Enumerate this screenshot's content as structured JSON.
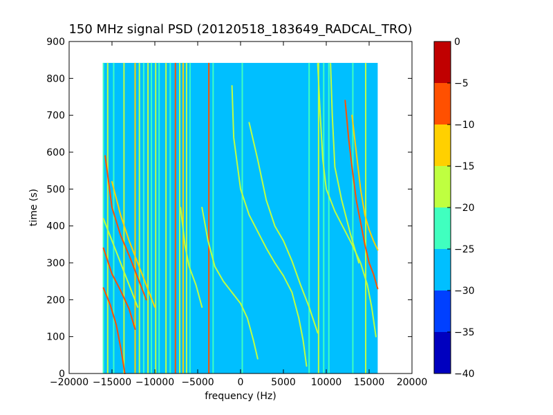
{
  "chart_data": {
    "type": "heatmap",
    "subtype": "filled-contour spectrogram",
    "title": "150 MHz signal PSD (20120518_183649_RADCAL_TRO)",
    "xlabel": "frequency (Hz)",
    "ylabel": "time (s)",
    "xlim": [
      -20000,
      20000
    ],
    "ylim": [
      0,
      900
    ],
    "x_ticks": [
      -20000,
      -15000,
      -10000,
      -5000,
      0,
      5000,
      10000,
      15000,
      20000
    ],
    "x_tick_labels": [
      "−20000",
      "−15000",
      "−10000",
      "−5000",
      "0",
      "5000",
      "10000",
      "15000",
      "20000"
    ],
    "y_ticks": [
      0,
      100,
      200,
      300,
      400,
      500,
      600,
      700,
      800,
      900
    ],
    "y_tick_labels": [
      "0",
      "100",
      "200",
      "300",
      "400",
      "500",
      "600",
      "700",
      "800",
      "900"
    ],
    "data_extent": {
      "x": [
        -16000,
        16000
      ],
      "y": [
        0,
        842
      ]
    },
    "background_level": -27.5,
    "colorbar": {
      "levels": [
        -40,
        -35,
        -30,
        -25,
        -20,
        -15,
        -10,
        -5,
        0
      ],
      "tick_labels": [
        "−40",
        "−35",
        "−30",
        "−25",
        "−20",
        "−15",
        "−10",
        "−5",
        "0"
      ],
      "colors": [
        "#0000bf",
        "#0040ff",
        "#00bfff",
        "#40ffbf",
        "#bfff40",
        "#ffd000",
        "#ff5000",
        "#c00000"
      ]
    },
    "vertical_lines": [
      {
        "x": -16000,
        "level": -22.5
      },
      {
        "x": -15500,
        "level": -17.5
      },
      {
        "x": -14800,
        "level": -22.5
      },
      {
        "x": -13600,
        "level": -17.5
      },
      {
        "x": -12300,
        "level": -12.5
      },
      {
        "x": -11800,
        "level": -17.5
      },
      {
        "x": -11300,
        "level": -22.5
      },
      {
        "x": -10800,
        "level": -17.5
      },
      {
        "x": -10400,
        "level": -22.5
      },
      {
        "x": -9900,
        "level": -17.5
      },
      {
        "x": -9500,
        "level": -22.5
      },
      {
        "x": -8700,
        "level": -17.5
      },
      {
        "x": -8200,
        "level": -22.5
      },
      {
        "x": -7600,
        "level": -7.5
      },
      {
        "x": -7100,
        "level": -17.5
      },
      {
        "x": -6700,
        "level": -12.5
      },
      {
        "x": -6300,
        "level": -17.5
      },
      {
        "x": -5900,
        "level": -22.5
      },
      {
        "x": -3700,
        "level": -7.5
      },
      {
        "x": -3200,
        "level": -22.5
      },
      {
        "x": 200,
        "level": -22.5
      },
      {
        "x": 8000,
        "level": -22.5
      },
      {
        "x": 9100,
        "level": -17.5
      },
      {
        "x": 9700,
        "level": -22.5
      },
      {
        "x": 10300,
        "level": -22.5
      },
      {
        "x": 13100,
        "level": -22.5
      },
      {
        "x": 14600,
        "level": -17.5
      }
    ],
    "tracks": [
      {
        "level": -7.5,
        "points": [
          [
            -16000,
            232
          ],
          [
            -15200,
            186
          ],
          [
            -14500,
            132
          ],
          [
            -13900,
            60
          ],
          [
            -13500,
            0
          ]
        ]
      },
      {
        "level": -7.5,
        "points": [
          [
            -16000,
            340
          ],
          [
            -15000,
            270
          ],
          [
            -14000,
            225
          ],
          [
            -13000,
            175
          ],
          [
            -12300,
            120
          ]
        ]
      },
      {
        "level": -7.5,
        "points": [
          [
            -15800,
            590
          ],
          [
            -15000,
            450
          ],
          [
            -14000,
            375
          ],
          [
            -13000,
            320
          ],
          [
            -12000,
            260
          ],
          [
            -11000,
            200
          ]
        ]
      },
      {
        "level": -12.5,
        "points": [
          [
            -15000,
            520
          ],
          [
            -14000,
            430
          ],
          [
            -13000,
            360
          ],
          [
            -12000,
            300
          ],
          [
            -11000,
            240
          ],
          [
            -10000,
            180
          ]
        ]
      },
      {
        "level": -17.5,
        "points": [
          [
            -16000,
            420
          ],
          [
            -15000,
            360
          ],
          [
            -14000,
            300
          ],
          [
            -13000,
            240
          ],
          [
            -12000,
            180
          ]
        ]
      },
      {
        "level": -17.5,
        "points": [
          [
            -7000,
            450
          ],
          [
            -6500,
            350
          ],
          [
            -6000,
            290
          ],
          [
            -5200,
            240
          ],
          [
            -4500,
            180
          ]
        ]
      },
      {
        "level": -17.5,
        "points": [
          [
            -4500,
            450
          ],
          [
            -3800,
            360
          ],
          [
            -3000,
            290
          ],
          [
            -2000,
            250
          ],
          [
            -1000,
            220
          ],
          [
            0,
            190
          ],
          [
            800,
            150
          ],
          [
            1500,
            90
          ],
          [
            2000,
            40
          ]
        ]
      },
      {
        "level": -17.5,
        "points": [
          [
            -1000,
            780
          ],
          [
            -800,
            640
          ],
          [
            0,
            500
          ],
          [
            1000,
            430
          ],
          [
            2000,
            385
          ],
          [
            3000,
            340
          ],
          [
            4000,
            300
          ],
          [
            5000,
            265
          ],
          [
            6000,
            220
          ],
          [
            6800,
            150
          ],
          [
            7300,
            90
          ],
          [
            7700,
            20
          ]
        ]
      },
      {
        "level": -17.5,
        "points": [
          [
            1000,
            680
          ],
          [
            2000,
            580
          ],
          [
            3000,
            470
          ],
          [
            4000,
            400
          ],
          [
            5000,
            360
          ],
          [
            6000,
            305
          ],
          [
            7000,
            240
          ],
          [
            8000,
            180
          ],
          [
            9000,
            110
          ]
        ]
      },
      {
        "level": -17.5,
        "points": [
          [
            9000,
            840
          ],
          [
            9300,
            700
          ],
          [
            9600,
            580
          ],
          [
            10000,
            500
          ],
          [
            11000,
            440
          ],
          [
            12000,
            395
          ],
          [
            13000,
            350
          ],
          [
            14000,
            300
          ],
          [
            14800,
            240
          ],
          [
            15300,
            180
          ],
          [
            15800,
            100
          ]
        ]
      },
      {
        "level": -17.5,
        "points": [
          [
            10500,
            840
          ],
          [
            10700,
            700
          ],
          [
            11000,
            560
          ],
          [
            11800,
            470
          ],
          [
            12800,
            380
          ],
          [
            13800,
            300
          ]
        ]
      },
      {
        "level": -7.5,
        "points": [
          [
            12200,
            740
          ],
          [
            12600,
            640
          ],
          [
            13000,
            560
          ],
          [
            13500,
            470
          ],
          [
            14000,
            410
          ],
          [
            14500,
            350
          ],
          [
            15000,
            300
          ],
          [
            15500,
            270
          ],
          [
            16000,
            230
          ]
        ]
      },
      {
        "level": -12.5,
        "points": [
          [
            13000,
            700
          ],
          [
            13500,
            600
          ],
          [
            14000,
            500
          ],
          [
            14500,
            430
          ],
          [
            15000,
            390
          ],
          [
            15500,
            360
          ],
          [
            16000,
            335
          ]
        ]
      }
    ]
  }
}
